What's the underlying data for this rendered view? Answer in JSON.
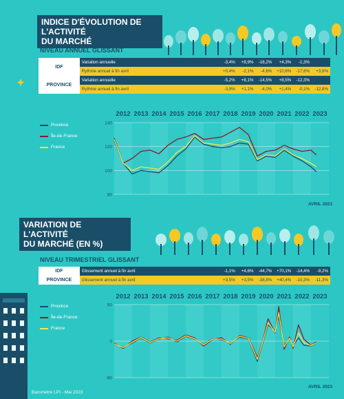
{
  "section1": {
    "title_line1": "Indice d'évolution de l'activité",
    "title_line2": "du marché",
    "subtitle": "Niveau annuel glissant",
    "table": [
      {
        "region": "IDF",
        "rows": [
          {
            "label": "Variation annuelle",
            "values": [
              "-3,4%",
              "+8,9%",
              "-16,2%",
              "+4,3%",
              "-1,3%",
              ""
            ]
          },
          {
            "label": "Rythme annuel à fin avril",
            "values": [
              "+0,4%",
              "-2,1%",
              "-4,6%",
              "+10,6%",
              "-17,6%",
              "+3,9%"
            ]
          }
        ]
      },
      {
        "region": "PROVINCE",
        "rows": [
          {
            "label": "Variation annuelle",
            "values": [
              "-5,2%",
              "+8,1%",
              "-14,5%",
              "+8,5%",
              "-12,3%",
              ""
            ]
          },
          {
            "label": "Rythme annuel à fin avril",
            "values": [
              "-3,9%",
              "+1,1%",
              "-4,0%",
              "+1,4%",
              "-0,1%",
              "-12,8%"
            ]
          }
        ]
      }
    ],
    "source": "AVRIL 2023"
  },
  "section2": {
    "title_line1": "Variation de l'activité",
    "title_line2": "du marché (en %)",
    "subtitle": "Niveau trimestriel glissant",
    "table": [
      {
        "region": "IDF",
        "rows": [
          {
            "label": "Glissement annuel à fin avril",
            "values": [
              "-1,1%",
              "+4,6%",
              "-44,7%",
              "+70,1%",
              "-14,4%",
              "-9,2%"
            ]
          }
        ]
      },
      {
        "region": "PROVINCE",
        "rows": [
          {
            "label": "Glissement annuel à fin avril",
            "values": [
              "+3,5%",
              "+3,5%",
              "-38,8%",
              "+40,4%",
              "-10,3%",
              "-11,3%"
            ]
          }
        ]
      }
    ],
    "source": "AVRIL 2023"
  },
  "footer": "Baromètre LPI - Mai 2023",
  "colors": {
    "province": "#1a4e68",
    "idf": "#8b1a2b",
    "france": "#f2e84a",
    "navy": "#1a4e68",
    "yellow": "#f6c824"
  },
  "chart_data": [
    {
      "type": "line",
      "x": [
        2012,
        2012.5,
        2013,
        2013.5,
        2014,
        2014.5,
        2015,
        2015.5,
        2016,
        2016.5,
        2017,
        2017.5,
        2018,
        2018.5,
        2019,
        2019.5,
        2020,
        2020.5,
        2021,
        2021.5,
        2022,
        2022.5,
        2023,
        2023.3
      ],
      "categories": [
        "2012",
        "2013",
        "2014",
        "2015",
        "2016",
        "2017",
        "2018",
        "2019",
        "2020",
        "2021",
        "2022",
        "2023"
      ],
      "series": [
        {
          "name": "Province",
          "values": [
            127,
            106,
            97,
            100,
            99,
            98,
            104,
            112,
            118,
            128,
            122,
            120,
            119,
            120,
            123,
            122,
            108,
            112,
            111,
            117,
            112,
            108,
            103,
            99
          ]
        },
        {
          "name": "Île-de-France",
          "values": [
            125,
            106,
            110,
            116,
            117,
            114,
            121,
            126,
            128,
            131,
            126,
            127,
            128,
            132,
            136,
            130,
            112,
            116,
            117,
            121,
            118,
            116,
            117,
            113
          ]
        },
        {
          "name": "France",
          "values": [
            126,
            106,
            100,
            103,
            102,
            101,
            107,
            115,
            120,
            129,
            123,
            122,
            121,
            123,
            126,
            124,
            109,
            113,
            112,
            118,
            113,
            110,
            106,
            103
          ]
        }
      ],
      "ylim": [
        80,
        140
      ],
      "yticks": [
        80,
        100,
        120,
        140
      ],
      "grid": true,
      "legend": "left"
    },
    {
      "type": "line",
      "x": [
        2012,
        2012.5,
        2013,
        2013.5,
        2014,
        2014.5,
        2015,
        2015.5,
        2016,
        2016.5,
        2017,
        2017.5,
        2018,
        2018.5,
        2019,
        2019.5,
        2020,
        2020.3,
        2020.6,
        2021,
        2021.2,
        2021.5,
        2021.8,
        2022,
        2022.3,
        2022.6,
        2023,
        2023.3
      ],
      "categories": [
        "2012",
        "2013",
        "2014",
        "2015",
        "2016",
        "2017",
        "2018",
        "2019",
        "2020",
        "2021",
        "2022",
        "2023"
      ],
      "series": [
        {
          "name": "Province",
          "values": [
            -8,
            -15,
            -5,
            8,
            -4,
            5,
            10,
            -2,
            12,
            5,
            -8,
            6,
            3,
            -5,
            10,
            6,
            -50,
            -5,
            40,
            25,
            60,
            -10,
            5,
            -12,
            8,
            -10,
            -12,
            -5
          ]
        },
        {
          "name": "Île-de-France",
          "values": [
            -5,
            -18,
            0,
            10,
            -2,
            8,
            6,
            2,
            15,
            8,
            -12,
            4,
            8,
            -8,
            14,
            8,
            -40,
            0,
            55,
            20,
            85,
            -20,
            10,
            -18,
            40,
            5,
            -10,
            -2
          ]
        },
        {
          "name": "France",
          "values": [
            -7,
            -16,
            -3,
            9,
            -3,
            6,
            8,
            0,
            13,
            6,
            -9,
            5,
            5,
            -6,
            12,
            7,
            -45,
            -2,
            45,
            22,
            70,
            -14,
            7,
            -14,
            20,
            -4,
            -11,
            -4
          ]
        }
      ],
      "ylim": [
        -90,
        90
      ],
      "yticks": [
        -90,
        0,
        90
      ],
      "grid": true,
      "legend": "left"
    }
  ]
}
